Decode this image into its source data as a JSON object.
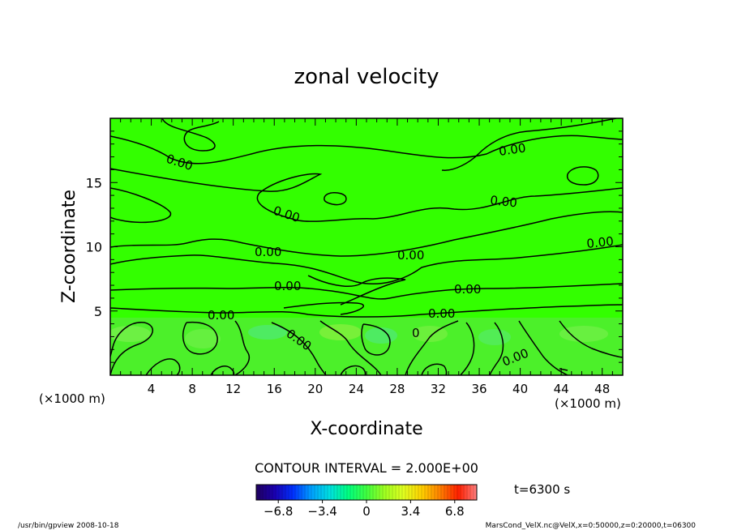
{
  "chart_data": {
    "type": "heatmap",
    "title": "zonal velocity",
    "xlabel": "X-coordinate",
    "ylabel": "Z-coordinate",
    "x_unit_left": "(×1000 m)",
    "x_unit_right": "(×1000 m)",
    "xlim": [
      0,
      50
    ],
    "ylim": [
      0,
      20
    ],
    "x_ticks": [
      "4",
      "8",
      "12",
      "16",
      "20",
      "24",
      "28",
      "32",
      "36",
      "40",
      "44",
      "48"
    ],
    "y_ticks": [
      "5",
      "10",
      "15"
    ],
    "contour_interval_label": "CONTOUR INTERVAL = 2.000E+00",
    "time_label": "t=6300 s",
    "colorbar": {
      "min": -8.5,
      "max": 8.5,
      "tick_labels": [
        "−6.8",
        "−3.4",
        "0",
        "3.4",
        "6.8"
      ],
      "tick_values": [
        -6.8,
        -3.4,
        0,
        3.4,
        6.8
      ],
      "colors": [
        "#200060",
        "#1a00b0",
        "#0030ff",
        "#00a0ff",
        "#00e0e0",
        "#00ff80",
        "#40ff40",
        "#a0ff20",
        "#e0ff20",
        "#ffd000",
        "#ff8000",
        "#ff2000",
        "#ff8080"
      ]
    },
    "contour_labels": [
      "0.00",
      "0.00",
      "0.00",
      "0.00",
      "0.00",
      "0.00",
      "0.00",
      "0.00",
      "0.00",
      "0.00",
      "0.00",
      "0.00",
      "0",
      "0.00"
    ],
    "background_color": "#33ff00"
  },
  "footer": {
    "left": "/usr/bin/gpview   2008-10-18",
    "right": "MarsCond_VelX.nc@VelX,x=0:50000,z=0:20000,t=06300"
  }
}
